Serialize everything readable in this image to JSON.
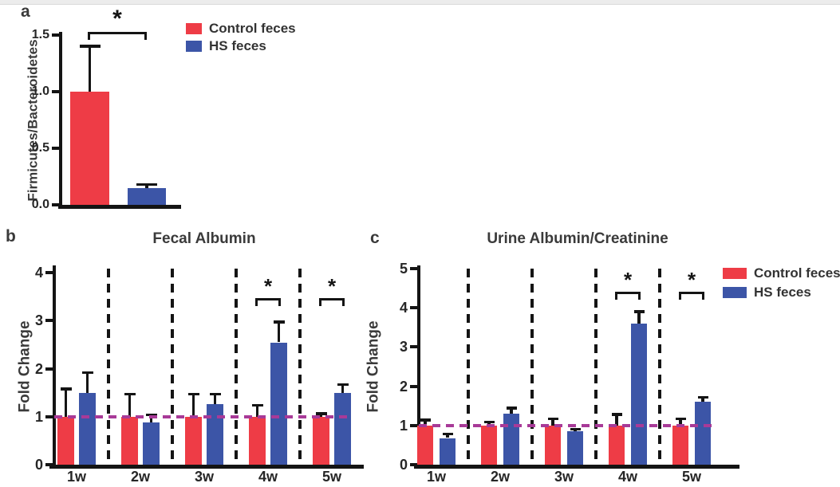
{
  "figure": {
    "colors": {
      "control": "#EE3C46",
      "hs": "#3C55A7",
      "axis": "#141414",
      "reference_line": "#A83A98",
      "text": "#3a3a3a",
      "top_strip": "#ececec"
    },
    "legend_items": [
      {
        "key": "control",
        "label": "Control feces"
      },
      {
        "key": "hs",
        "label": "HS feces"
      }
    ]
  },
  "chart_data": [
    {
      "panel": "a",
      "type": "bar",
      "title": "",
      "ylabel": "Firmicutes/Bacteroidetes",
      "ylim": [
        0,
        1.5
      ],
      "ytick_labels": [
        "0.0",
        "0.5",
        "1.0",
        "1.5"
      ],
      "categories": [
        "Control feces",
        "HS feces"
      ],
      "values": [
        1.0,
        0.15
      ],
      "errors": [
        0.4,
        0.03
      ],
      "bar_color_keys": [
        "control",
        "hs"
      ],
      "significance": [
        {
          "between": [
            0,
            1
          ],
          "label": "*"
        }
      ],
      "legend_position": "right-of-plot",
      "grid": false
    },
    {
      "panel": "b",
      "type": "bar",
      "title": "Fecal Albumin",
      "ylabel": "Fold Change",
      "ylim": [
        0,
        4
      ],
      "ytick_labels": [
        "0",
        "1",
        "2",
        "3",
        "4"
      ],
      "categories": [
        "1w",
        "2w",
        "3w",
        "4w",
        "5w"
      ],
      "series": [
        {
          "name": "Control feces",
          "color_key": "control",
          "values": [
            1.0,
            1.0,
            1.0,
            1.0,
            1.0
          ],
          "errors": [
            0.58,
            0.47,
            0.47,
            0.24,
            0.06
          ]
        },
        {
          "name": "HS feces",
          "color_key": "hs",
          "values": [
            1.5,
            0.88,
            1.27,
            2.55,
            1.5
          ],
          "errors": [
            0.42,
            0.16,
            0.2,
            0.42,
            0.17
          ]
        }
      ],
      "reference_line": 1.0,
      "group_separators": true,
      "significance": [
        {
          "category": "4w",
          "label": "*"
        },
        {
          "category": "5w",
          "label": "*"
        }
      ],
      "grid": false
    },
    {
      "panel": "c",
      "type": "bar",
      "title": "Urine Albumin/Creatinine",
      "ylabel": "Fold Change",
      "ylim": [
        0,
        5
      ],
      "ytick_labels": [
        "0",
        "1",
        "2",
        "3",
        "4",
        "5"
      ],
      "categories": [
        "1w",
        "2w",
        "3w",
        "4w",
        "5w"
      ],
      "series": [
        {
          "name": "Control feces",
          "color_key": "control",
          "values": [
            1.0,
            1.0,
            1.0,
            1.0,
            1.0
          ],
          "errors": [
            0.14,
            0.09,
            0.17,
            0.28,
            0.17
          ]
        },
        {
          "name": "HS feces",
          "color_key": "hs",
          "values": [
            0.68,
            1.3,
            0.85,
            3.6,
            1.6
          ],
          "errors": [
            0.1,
            0.14,
            0.05,
            0.3,
            0.12
          ]
        }
      ],
      "reference_line": 1.0,
      "group_separators": true,
      "significance": [
        {
          "category": "4w",
          "label": "*"
        },
        {
          "category": "5w",
          "label": "*"
        }
      ],
      "legend_position": "top-right",
      "grid": false
    }
  ]
}
